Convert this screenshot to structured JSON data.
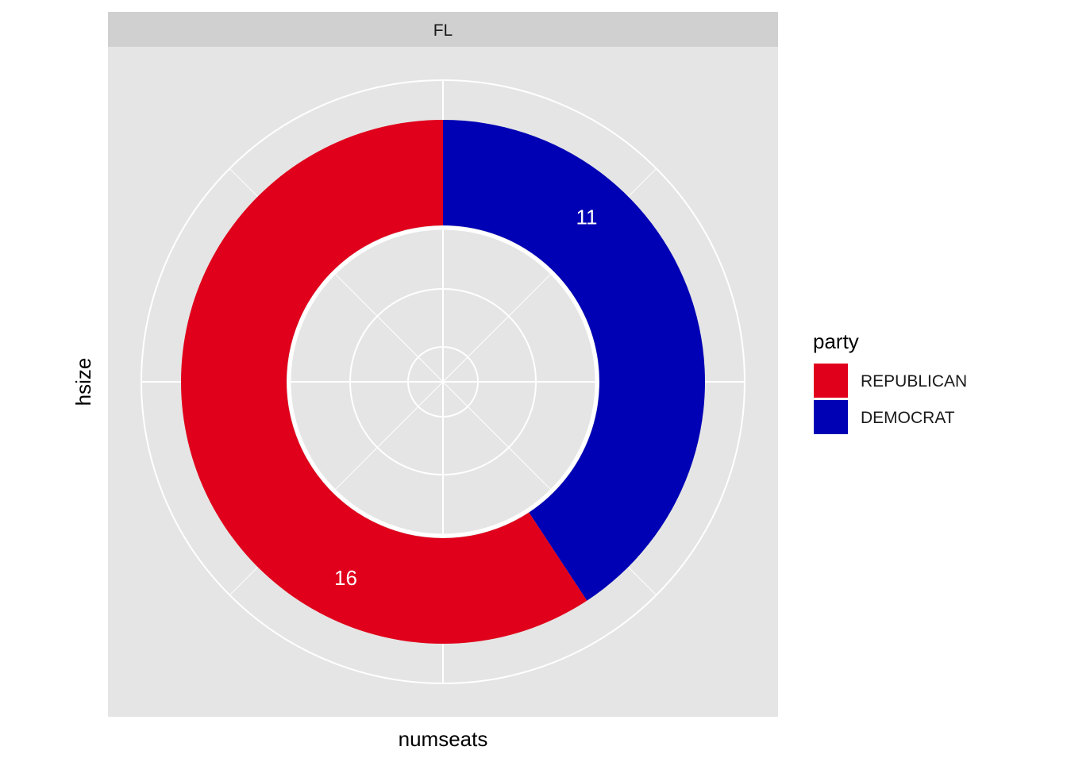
{
  "chart_data": {
    "type": "pie",
    "subtype": "donut",
    "facet": "FL",
    "xlabel": "numseats",
    "ylabel": "hsize",
    "legend": {
      "title": "party",
      "position": "right",
      "entries": [
        {
          "label": "REPUBLICAN",
          "color": "#E0001B"
        },
        {
          "label": "DEMOCRAT",
          "color": "#0000B4"
        }
      ]
    },
    "slices": [
      {
        "name": "DEMOCRAT",
        "value": 11,
        "label": "11",
        "color": "#0000B4"
      },
      {
        "name": "REPUBLICAN",
        "value": 16,
        "label": "16",
        "color": "#E0001B"
      }
    ],
    "panel_background": "#E5E5E5",
    "strip_background": "#D0D0D0",
    "grid": true
  }
}
